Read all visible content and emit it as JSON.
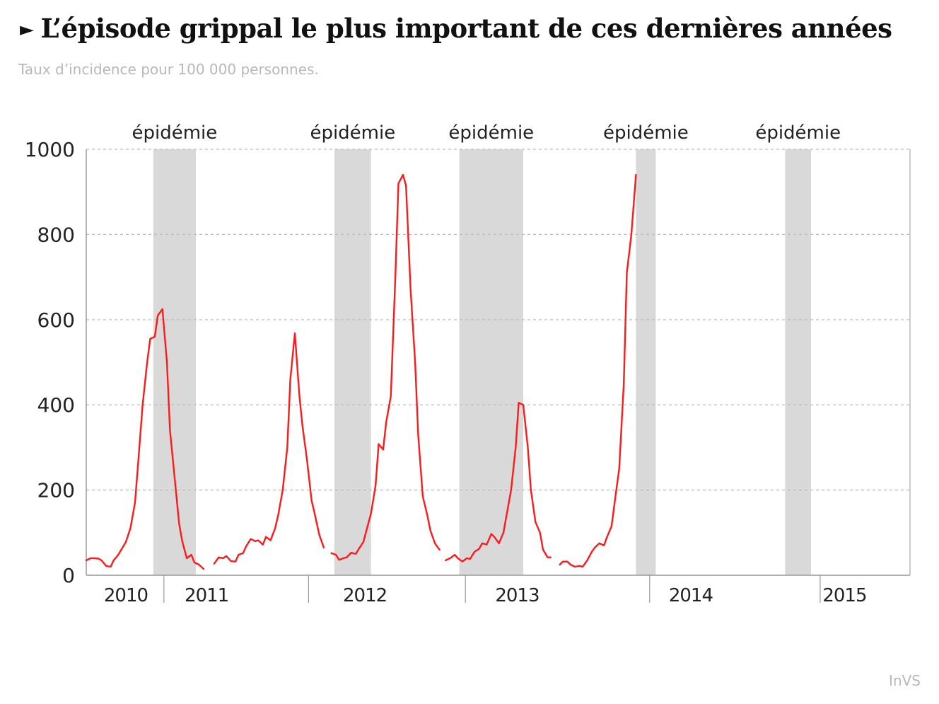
{
  "title": "L’épisode grippal le plus important de ces dernières années",
  "title_marker": "►",
  "subtitle": "Taux d’incidence pour 100 000 personnes.",
  "source": "InVS",
  "colors": {
    "line": "#ff1a1a",
    "band": "#d9d9d9",
    "grid": "#bbbbbb",
    "axis": "#999999",
    "text": "#222222",
    "muted": "#b8b8b8"
  },
  "chart_data": {
    "type": "line",
    "title": "L’épisode grippal le plus important de ces dernières années",
    "ylabel": "",
    "xlabel": "",
    "ylim": [
      0,
      1000
    ],
    "yticks": [
      0,
      200,
      400,
      600,
      800,
      1000
    ],
    "grid": true,
    "xlim": [
      2009.71,
      2015.12
    ],
    "years": [
      {
        "label": "2010",
        "x": 2009.97,
        "boundary": null
      },
      {
        "label": "2011",
        "x": 2010.5,
        "boundary": 2010.22
      },
      {
        "label": "2012",
        "x": 2011.54,
        "boundary": 2011.17
      },
      {
        "label": "2013",
        "x": 2012.54,
        "boundary": 2012.2
      },
      {
        "label": "2014",
        "x": 2013.68,
        "boundary": 2013.41
      },
      {
        "label": "2015",
        "x": 2014.69,
        "boundary": 2014.53
      }
    ],
    "epidemics": [
      {
        "label": "épidémie",
        "start": 2010.15,
        "end": 2010.43
      },
      {
        "label": "épidémie",
        "start": 2011.34,
        "end": 2011.58
      },
      {
        "label": "épidémie",
        "start": 2012.16,
        "end": 2012.58
      },
      {
        "label": "épidémie",
        "start": 2013.32,
        "end": 2013.45
      },
      {
        "label": "épidémie",
        "start": 2014.3,
        "end": 2014.47
      }
    ],
    "series": [
      {
        "values": [
          [
            2009.71,
            35
          ],
          [
            2009.74,
            40
          ],
          [
            2009.76,
            40
          ],
          [
            2009.79,
            39
          ],
          [
            2009.81,
            35
          ],
          [
            2009.84,
            22
          ],
          [
            2009.87,
            20
          ],
          [
            2009.89,
            35
          ],
          [
            2009.92,
            48
          ],
          [
            2009.94,
            60
          ],
          [
            2009.97,
            78
          ],
          [
            2010.0,
            110
          ],
          [
            2010.03,
            170
          ],
          [
            2010.05,
            260
          ],
          [
            2010.08,
            400
          ],
          [
            2010.11,
            500
          ],
          [
            2010.13,
            555
          ],
          [
            2010.16,
            560
          ],
          [
            2010.18,
            610
          ],
          [
            2010.21,
            625
          ],
          [
            2010.24,
            500
          ],
          [
            2010.26,
            340
          ],
          [
            2010.29,
            230
          ],
          [
            2010.32,
            120
          ],
          [
            2010.34,
            80
          ],
          [
            2010.37,
            40
          ],
          [
            2010.4,
            48
          ],
          [
            2010.42,
            30
          ],
          [
            2010.45,
            25
          ],
          [
            2010.48,
            15
          ]
        ]
      },
      {
        "values": [
          [
            2010.55,
            27
          ],
          [
            2010.58,
            42
          ],
          [
            2010.61,
            40
          ],
          [
            2010.63,
            45
          ],
          [
            2010.66,
            33
          ],
          [
            2010.69,
            32
          ],
          [
            2010.71,
            48
          ],
          [
            2010.74,
            52
          ],
          [
            2010.76,
            68
          ],
          [
            2010.79,
            85
          ],
          [
            2010.82,
            80
          ],
          [
            2010.84,
            82
          ],
          [
            2010.87,
            72
          ],
          [
            2010.89,
            90
          ],
          [
            2010.92,
            82
          ],
          [
            2010.95,
            110
          ],
          [
            2010.97,
            140
          ],
          [
            2011.0,
            200
          ],
          [
            2011.03,
            300
          ],
          [
            2011.05,
            460
          ],
          [
            2011.08,
            568
          ],
          [
            2011.11,
            420
          ],
          [
            2011.13,
            350
          ],
          [
            2011.16,
            270
          ],
          [
            2011.19,
            175
          ],
          [
            2011.21,
            145
          ],
          [
            2011.24,
            95
          ],
          [
            2011.27,
            65
          ]
        ]
      },
      {
        "values": [
          [
            2011.32,
            52
          ],
          [
            2011.35,
            48
          ],
          [
            2011.37,
            36
          ],
          [
            2011.4,
            40
          ],
          [
            2011.42,
            42
          ],
          [
            2011.45,
            53
          ],
          [
            2011.48,
            50
          ],
          [
            2011.5,
            62
          ],
          [
            2011.53,
            78
          ],
          [
            2011.55,
            105
          ],
          [
            2011.58,
            145
          ],
          [
            2011.61,
            210
          ],
          [
            2011.63,
            308
          ],
          [
            2011.66,
            295
          ],
          [
            2011.68,
            360
          ],
          [
            2011.71,
            420
          ],
          [
            2011.74,
            700
          ],
          [
            2011.76,
            920
          ],
          [
            2011.79,
            940
          ],
          [
            2011.81,
            915
          ],
          [
            2011.84,
            670
          ],
          [
            2011.87,
            500
          ],
          [
            2011.89,
            330
          ],
          [
            2011.92,
            185
          ],
          [
            2011.95,
            140
          ],
          [
            2011.97,
            105
          ],
          [
            2012.0,
            75
          ],
          [
            2012.03,
            60
          ]
        ]
      },
      {
        "values": [
          [
            2012.07,
            35
          ],
          [
            2012.1,
            40
          ],
          [
            2012.13,
            48
          ],
          [
            2012.15,
            40
          ],
          [
            2012.18,
            32
          ],
          [
            2012.21,
            40
          ],
          [
            2012.23,
            38
          ],
          [
            2012.26,
            55
          ],
          [
            2012.29,
            62
          ],
          [
            2012.31,
            75
          ],
          [
            2012.34,
            72
          ],
          [
            2012.37,
            97
          ],
          [
            2012.39,
            90
          ],
          [
            2012.42,
            75
          ],
          [
            2012.45,
            100
          ],
          [
            2012.47,
            140
          ],
          [
            2012.5,
            200
          ],
          [
            2012.53,
            300
          ],
          [
            2012.55,
            405
          ],
          [
            2012.58,
            400
          ],
          [
            2012.61,
            300
          ],
          [
            2012.63,
            200
          ],
          [
            2012.66,
            125
          ],
          [
            2012.69,
            100
          ],
          [
            2012.71,
            60
          ],
          [
            2012.74,
            42
          ],
          [
            2012.76,
            42
          ]
        ]
      },
      {
        "values": [
          [
            2012.82,
            25
          ],
          [
            2012.84,
            32
          ],
          [
            2012.87,
            32
          ],
          [
            2012.89,
            25
          ],
          [
            2012.92,
            20
          ],
          [
            2012.95,
            22
          ],
          [
            2012.97,
            20
          ],
          [
            2013.0,
            35
          ],
          [
            2013.03,
            55
          ],
          [
            2013.05,
            65
          ],
          [
            2013.08,
            75
          ],
          [
            2013.11,
            70
          ],
          [
            2013.13,
            90
          ],
          [
            2013.16,
            115
          ],
          [
            2013.18,
            170
          ],
          [
            2013.21,
            250
          ],
          [
            2013.24,
            450
          ],
          [
            2013.26,
            710
          ],
          [
            2013.29,
            800
          ],
          [
            2013.32,
            940
          ]
        ]
      }
    ]
  },
  "labels": {
    "epidemic": "épidémie"
  }
}
